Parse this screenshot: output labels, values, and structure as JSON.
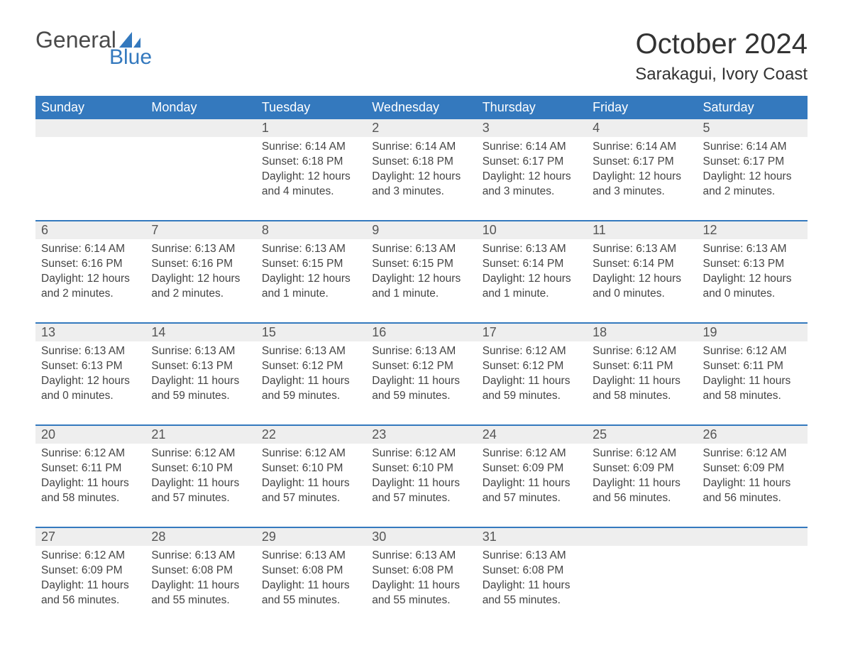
{
  "logo": {
    "top": "General",
    "bottom": "Blue"
  },
  "title": "October 2024",
  "location": "Sarakagui, Ivory Coast",
  "colors": {
    "brand_blue": "#3479be",
    "header_text": "#ffffff",
    "daynum_bg": "#eeeeee",
    "body_text": "#444444",
    "page_bg": "#ffffff"
  },
  "day_headers": [
    "Sunday",
    "Monday",
    "Tuesday",
    "Wednesday",
    "Thursday",
    "Friday",
    "Saturday"
  ],
  "weeks": [
    [
      null,
      null,
      {
        "n": "1",
        "sr": "Sunrise: 6:14 AM",
        "ss": "Sunset: 6:18 PM",
        "dl": "Daylight: 12 hours and 4 minutes."
      },
      {
        "n": "2",
        "sr": "Sunrise: 6:14 AM",
        "ss": "Sunset: 6:18 PM",
        "dl": "Daylight: 12 hours and 3 minutes."
      },
      {
        "n": "3",
        "sr": "Sunrise: 6:14 AM",
        "ss": "Sunset: 6:17 PM",
        "dl": "Daylight: 12 hours and 3 minutes."
      },
      {
        "n": "4",
        "sr": "Sunrise: 6:14 AM",
        "ss": "Sunset: 6:17 PM",
        "dl": "Daylight: 12 hours and 3 minutes."
      },
      {
        "n": "5",
        "sr": "Sunrise: 6:14 AM",
        "ss": "Sunset: 6:17 PM",
        "dl": "Daylight: 12 hours and 2 minutes."
      }
    ],
    [
      {
        "n": "6",
        "sr": "Sunrise: 6:14 AM",
        "ss": "Sunset: 6:16 PM",
        "dl": "Daylight: 12 hours and 2 minutes."
      },
      {
        "n": "7",
        "sr": "Sunrise: 6:13 AM",
        "ss": "Sunset: 6:16 PM",
        "dl": "Daylight: 12 hours and 2 minutes."
      },
      {
        "n": "8",
        "sr": "Sunrise: 6:13 AM",
        "ss": "Sunset: 6:15 PM",
        "dl": "Daylight: 12 hours and 1 minute."
      },
      {
        "n": "9",
        "sr": "Sunrise: 6:13 AM",
        "ss": "Sunset: 6:15 PM",
        "dl": "Daylight: 12 hours and 1 minute."
      },
      {
        "n": "10",
        "sr": "Sunrise: 6:13 AM",
        "ss": "Sunset: 6:14 PM",
        "dl": "Daylight: 12 hours and 1 minute."
      },
      {
        "n": "11",
        "sr": "Sunrise: 6:13 AM",
        "ss": "Sunset: 6:14 PM",
        "dl": "Daylight: 12 hours and 0 minutes."
      },
      {
        "n": "12",
        "sr": "Sunrise: 6:13 AM",
        "ss": "Sunset: 6:13 PM",
        "dl": "Daylight: 12 hours and 0 minutes."
      }
    ],
    [
      {
        "n": "13",
        "sr": "Sunrise: 6:13 AM",
        "ss": "Sunset: 6:13 PM",
        "dl": "Daylight: 12 hours and 0 minutes."
      },
      {
        "n": "14",
        "sr": "Sunrise: 6:13 AM",
        "ss": "Sunset: 6:13 PM",
        "dl": "Daylight: 11 hours and 59 minutes."
      },
      {
        "n": "15",
        "sr": "Sunrise: 6:13 AM",
        "ss": "Sunset: 6:12 PM",
        "dl": "Daylight: 11 hours and 59 minutes."
      },
      {
        "n": "16",
        "sr": "Sunrise: 6:13 AM",
        "ss": "Sunset: 6:12 PM",
        "dl": "Daylight: 11 hours and 59 minutes."
      },
      {
        "n": "17",
        "sr": "Sunrise: 6:12 AM",
        "ss": "Sunset: 6:12 PM",
        "dl": "Daylight: 11 hours and 59 minutes."
      },
      {
        "n": "18",
        "sr": "Sunrise: 6:12 AM",
        "ss": "Sunset: 6:11 PM",
        "dl": "Daylight: 11 hours and 58 minutes."
      },
      {
        "n": "19",
        "sr": "Sunrise: 6:12 AM",
        "ss": "Sunset: 6:11 PM",
        "dl": "Daylight: 11 hours and 58 minutes."
      }
    ],
    [
      {
        "n": "20",
        "sr": "Sunrise: 6:12 AM",
        "ss": "Sunset: 6:11 PM",
        "dl": "Daylight: 11 hours and 58 minutes."
      },
      {
        "n": "21",
        "sr": "Sunrise: 6:12 AM",
        "ss": "Sunset: 6:10 PM",
        "dl": "Daylight: 11 hours and 57 minutes."
      },
      {
        "n": "22",
        "sr": "Sunrise: 6:12 AM",
        "ss": "Sunset: 6:10 PM",
        "dl": "Daylight: 11 hours and 57 minutes."
      },
      {
        "n": "23",
        "sr": "Sunrise: 6:12 AM",
        "ss": "Sunset: 6:10 PM",
        "dl": "Daylight: 11 hours and 57 minutes."
      },
      {
        "n": "24",
        "sr": "Sunrise: 6:12 AM",
        "ss": "Sunset: 6:09 PM",
        "dl": "Daylight: 11 hours and 57 minutes."
      },
      {
        "n": "25",
        "sr": "Sunrise: 6:12 AM",
        "ss": "Sunset: 6:09 PM",
        "dl": "Daylight: 11 hours and 56 minutes."
      },
      {
        "n": "26",
        "sr": "Sunrise: 6:12 AM",
        "ss": "Sunset: 6:09 PM",
        "dl": "Daylight: 11 hours and 56 minutes."
      }
    ],
    [
      {
        "n": "27",
        "sr": "Sunrise: 6:12 AM",
        "ss": "Sunset: 6:09 PM",
        "dl": "Daylight: 11 hours and 56 minutes."
      },
      {
        "n": "28",
        "sr": "Sunrise: 6:13 AM",
        "ss": "Sunset: 6:08 PM",
        "dl": "Daylight: 11 hours and 55 minutes."
      },
      {
        "n": "29",
        "sr": "Sunrise: 6:13 AM",
        "ss": "Sunset: 6:08 PM",
        "dl": "Daylight: 11 hours and 55 minutes."
      },
      {
        "n": "30",
        "sr": "Sunrise: 6:13 AM",
        "ss": "Sunset: 6:08 PM",
        "dl": "Daylight: 11 hours and 55 minutes."
      },
      {
        "n": "31",
        "sr": "Sunrise: 6:13 AM",
        "ss": "Sunset: 6:08 PM",
        "dl": "Daylight: 11 hours and 55 minutes."
      },
      null,
      null
    ]
  ]
}
